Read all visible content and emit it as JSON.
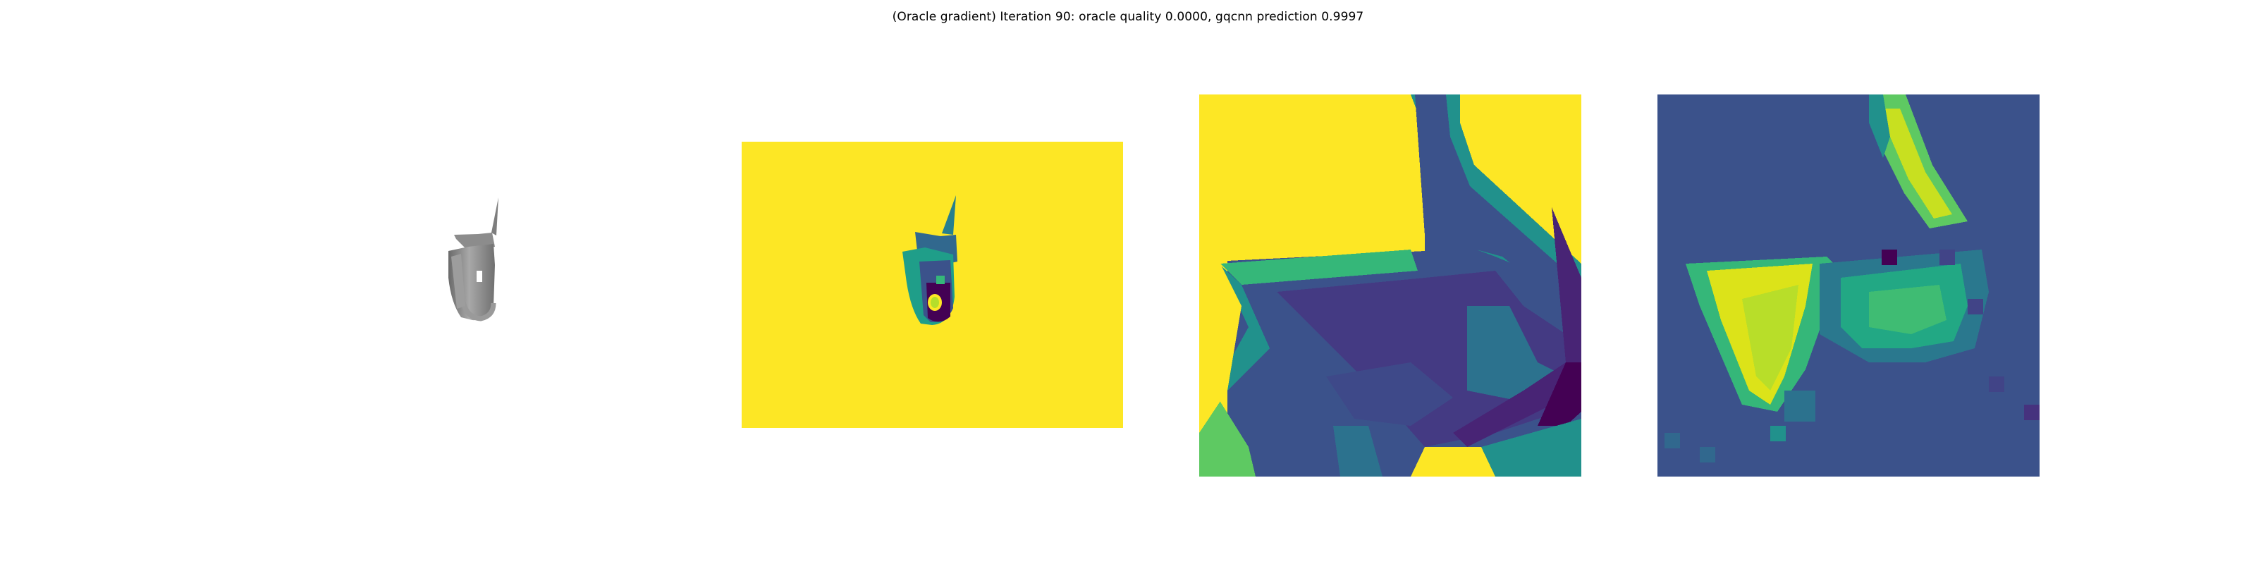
{
  "figure": {
    "title": "(Oracle gradient) Iteration 90: oracle quality 0.0000, gqcnn prediction 0.9997"
  },
  "panels": [
    {
      "icon": "object-render-icon"
    },
    {
      "icon": "depth-image-icon"
    },
    {
      "icon": "depth-crop-heatmap-icon"
    },
    {
      "icon": "gradient-heatmap-icon"
    }
  ],
  "colors": {
    "background": "#ffffff",
    "viridis_yellow": "#fde725",
    "viridis_dark": "#440154",
    "viridis_blue": "#3b528b",
    "viridis_teal": "#21918c",
    "viridis_green": "#5ec962",
    "object_gray": "#8a8a8a"
  }
}
